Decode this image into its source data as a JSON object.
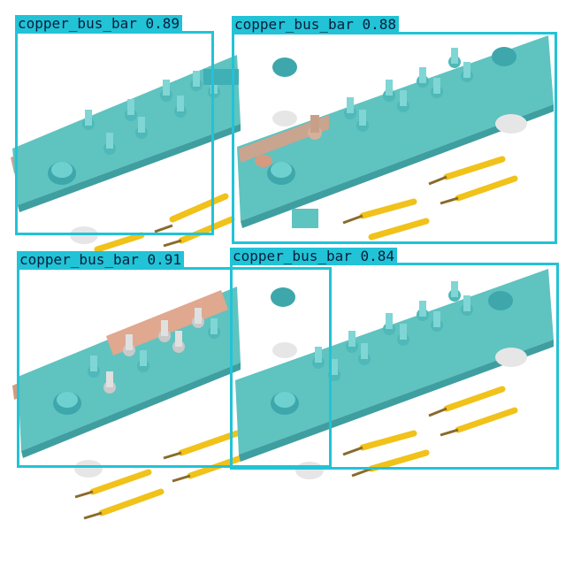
{
  "image": {
    "description_free": true
  },
  "colors": {
    "box": "#22c3d6",
    "label_text": "#0a1e3c",
    "bar": "#5fc3c0",
    "copper": "#d59a7f",
    "anchor": "#f0c21a"
  },
  "detections": [
    {
      "label": "copper_bus_bar",
      "score": "0.89"
    },
    {
      "label": "copper_bus_bar",
      "score": "0.88"
    },
    {
      "label": "copper_bus_bar",
      "score": "0.91"
    },
    {
      "label": "copper_bus_bar",
      "score": "0.84"
    }
  ]
}
